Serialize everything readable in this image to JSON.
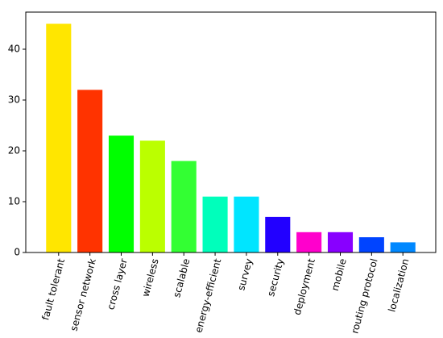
{
  "chart_data": {
    "type": "bar",
    "title": "",
    "xlabel": "",
    "ylabel": "",
    "categories": [
      "fault tolerant",
      "sensor network",
      "cross layer",
      "wireless",
      "scalable",
      "energy-efficient",
      "survey",
      "security",
      "deployment",
      "mobile",
      "routing protocol",
      "localization"
    ],
    "values": [
      45,
      32,
      23,
      22,
      18,
      11,
      11,
      7,
      4,
      4,
      3,
      2
    ],
    "colors": [
      "#ffe600",
      "#ff3300",
      "#00ff00",
      "#bbff00",
      "#33ff33",
      "#00ffbb",
      "#00e5ff",
      "#2200ff",
      "#ff00cc",
      "#8800ff",
      "#0044ff",
      "#0088ff"
    ],
    "ylim": [
      0,
      47.3
    ],
    "yticks": [
      0,
      10,
      20,
      30,
      40
    ],
    "grid": false,
    "legend": "none"
  }
}
